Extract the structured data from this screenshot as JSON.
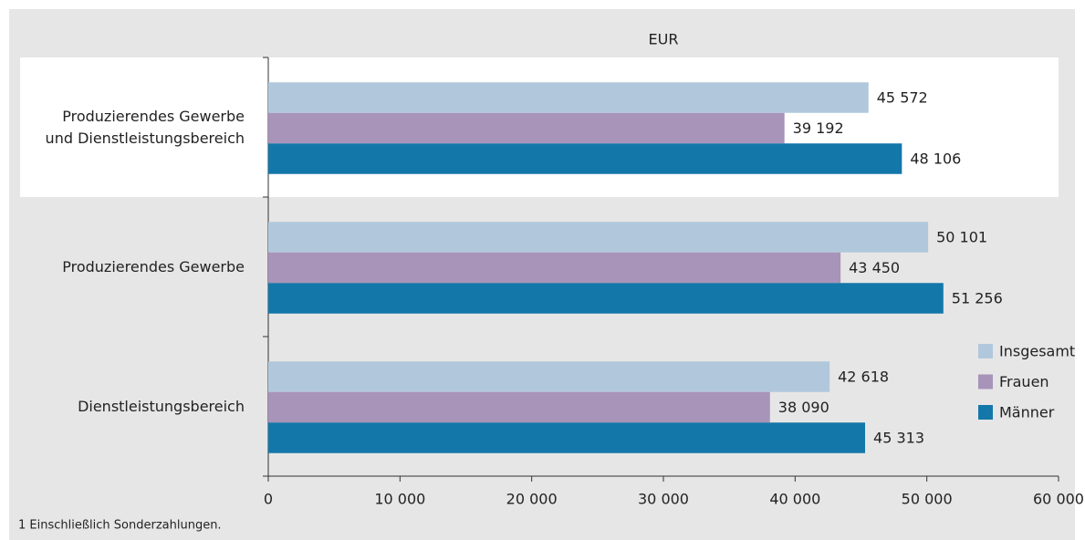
{
  "chart_data": {
    "type": "bar",
    "orientation": "horizontal",
    "x_label": "EUR",
    "categories": [
      "Produzierendes Gewerbe\nund Dienstleistungsbereich",
      "Produzierendes Gewerbe",
      "Dienstleistungsbereich"
    ],
    "series": [
      {
        "name": "Insgesamt",
        "color": "#b1c8dc",
        "values": [
          45572,
          50101,
          42618
        ],
        "value_labels": [
          "45 572",
          "50 101",
          "42 618"
        ]
      },
      {
        "name": "Frauen",
        "color": "#a893b9",
        "values": [
          39192,
          43450,
          38090
        ],
        "value_labels": [
          "39 192",
          "43 450",
          "38 090"
        ]
      },
      {
        "name": "Männer",
        "color": "#1477a9",
        "values": [
          48106,
          51256,
          45313
        ],
        "value_labels": [
          "48 106",
          "51 256",
          "45 313"
        ]
      }
    ],
    "xlim": [
      0,
      60000
    ],
    "xticks": [
      0,
      {
        "value": 10000,
        "label": "10 000"
      },
      {
        "value": 20000,
        "label": "20 000"
      },
      {
        "value": 30000,
        "label": "30 000"
      },
      {
        "value": 40000,
        "label": "40 000"
      },
      {
        "value": 50000,
        "label": "50 000"
      },
      {
        "value": 60000,
        "label": "60 000"
      }
    ],
    "legend": "lower right",
    "note": "1 Einschließlich Sonderzahlungen."
  }
}
